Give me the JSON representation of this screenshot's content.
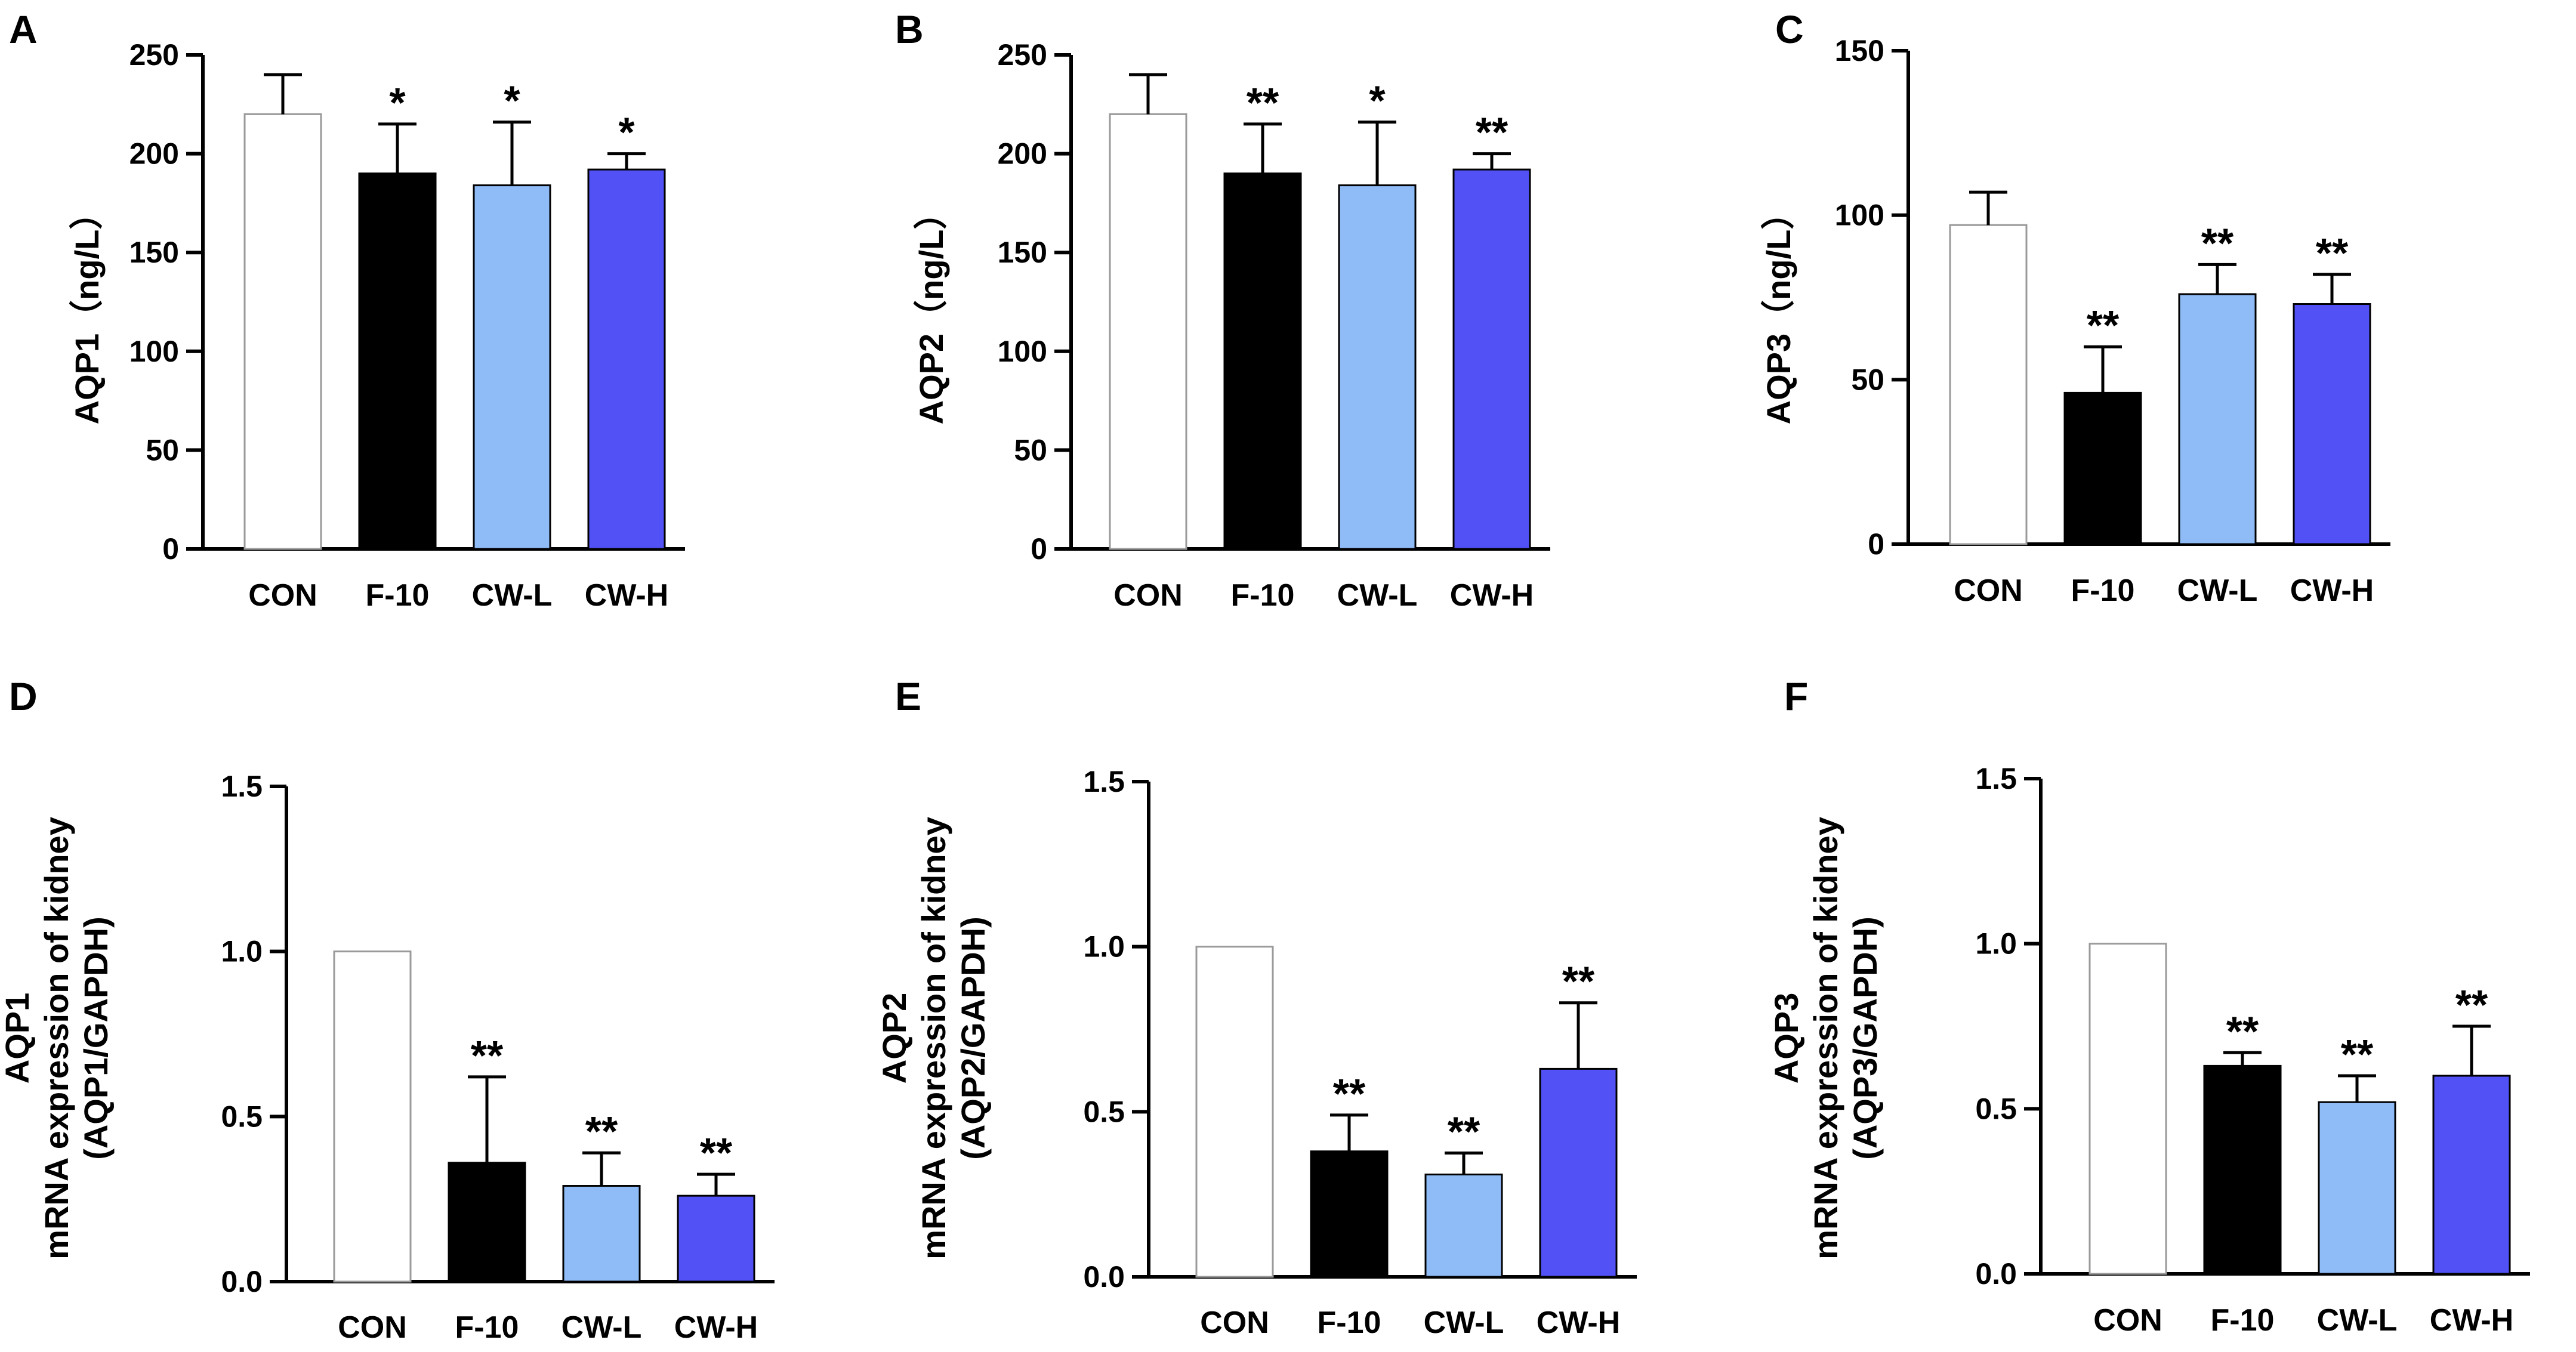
{
  "figure": {
    "colors": {
      "CON": "#ffffff",
      "F-10": "#000000",
      "CW-L": "#8fbcf7",
      "CW-H": "#5151f5",
      "outline": "#000000",
      "con_outline": "#9a9a9a"
    }
  },
  "chart_data": [
    {
      "type": "bar",
      "panel": "A",
      "categories": [
        "CON",
        "F-10",
        "CW-L",
        "CW-H"
      ],
      "values": [
        220,
        190,
        184,
        192
      ],
      "errors": [
        20,
        25,
        32,
        8
      ],
      "significance": [
        "",
        "*",
        "*",
        "*"
      ],
      "ylabel": [
        "AQP1（ng/L）"
      ],
      "ylim": [
        0,
        250
      ],
      "yticks": [
        0,
        50,
        100,
        150,
        200,
        250
      ],
      "ytick_labels": [
        "0",
        "50",
        "100",
        "150",
        "200",
        "250"
      ]
    },
    {
      "type": "bar",
      "panel": "B",
      "categories": [
        "CON",
        "F-10",
        "CW-L",
        "CW-H"
      ],
      "values": [
        220,
        190,
        184,
        192
      ],
      "errors": [
        20,
        25,
        32,
        8
      ],
      "significance": [
        "",
        "**",
        "*",
        "**"
      ],
      "ylabel": [
        "AQP2（ng/L）"
      ],
      "ylim": [
        0,
        250
      ],
      "yticks": [
        0,
        50,
        100,
        150,
        200,
        250
      ],
      "ytick_labels": [
        "0",
        "50",
        "100",
        "150",
        "200",
        "250"
      ]
    },
    {
      "type": "bar",
      "panel": "C",
      "categories": [
        "CON",
        "F-10",
        "CW-L",
        "CW-H"
      ],
      "values": [
        97,
        46,
        76,
        73
      ],
      "errors": [
        10,
        14,
        9,
        9
      ],
      "significance": [
        "",
        "**",
        "**",
        "**"
      ],
      "ylabel": [
        "AQP3（ng/L）"
      ],
      "ylim": [
        0,
        150
      ],
      "yticks": [
        0,
        50,
        100,
        150
      ],
      "ytick_labels": [
        "0",
        "50",
        "100",
        "150"
      ]
    },
    {
      "type": "bar",
      "panel": "D",
      "categories": [
        "CON",
        "F-10",
        "CW-L",
        "CW-H"
      ],
      "values": [
        1.0,
        0.36,
        0.29,
        0.26
      ],
      "errors": [
        0,
        0.26,
        0.1,
        0.065
      ],
      "significance": [
        "",
        "**",
        "**",
        "**"
      ],
      "ylabel": [
        "AQP1",
        "mRNA  expression of kidney",
        "(AQP1/GAPDH)"
      ],
      "ylim": [
        0,
        1.5
      ],
      "yticks": [
        0,
        0.5,
        1.0,
        1.5
      ],
      "ytick_labels": [
        "0.0",
        "0.5",
        "1.0",
        "1.5"
      ]
    },
    {
      "type": "bar",
      "panel": "E",
      "categories": [
        "CON",
        "F-10",
        "CW-L",
        "CW-H"
      ],
      "values": [
        1.0,
        0.38,
        0.31,
        0.63
      ],
      "errors": [
        0,
        0.11,
        0.065,
        0.2
      ],
      "significance": [
        "",
        "**",
        "**",
        "**"
      ],
      "ylabel": [
        "AQP2",
        "mRNA  expression of kidney",
        "(AQP2/GAPDH)"
      ],
      "ylim": [
        0,
        1.5
      ],
      "yticks": [
        0,
        0.5,
        1.0,
        1.5
      ],
      "ytick_labels": [
        "0.0",
        "0.5",
        "1.0",
        "1.5"
      ]
    },
    {
      "type": "bar",
      "panel": "F",
      "categories": [
        "CON",
        "F-10",
        "CW-L",
        "CW-H"
      ],
      "values": [
        1.0,
        0.63,
        0.52,
        0.6
      ],
      "errors": [
        0,
        0.04,
        0.08,
        0.15
      ],
      "significance": [
        "",
        "**",
        "**",
        "**"
      ],
      "ylabel": [
        "AQP3",
        "mRNA  expression of kidney",
        "(AQP3/GAPDH)"
      ],
      "ylim": [
        0,
        1.5
      ],
      "yticks": [
        0,
        0.5,
        1.0,
        1.5
      ],
      "ytick_labels": [
        "0.0",
        "0.5",
        "1.0",
        "1.5"
      ]
    }
  ]
}
